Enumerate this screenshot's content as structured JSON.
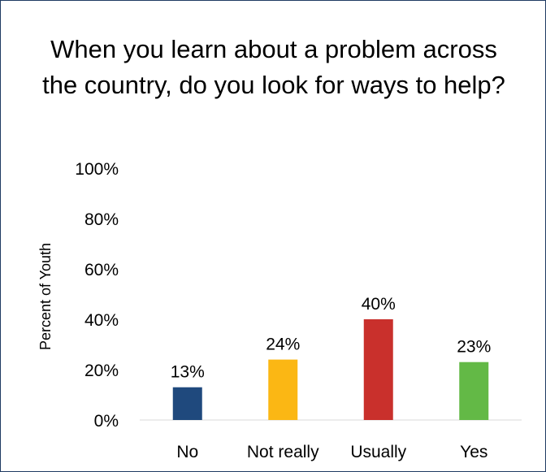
{
  "chart_data": {
    "type": "bar",
    "title": "When you learn about a problem across the country, do you look for ways to help?",
    "ylabel": "Percent of Youth",
    "xlabel": "",
    "categories": [
      "No",
      "Not really",
      "Usually",
      "Yes"
    ],
    "values": [
      13,
      24,
      40,
      23
    ],
    "data_labels": [
      "13%",
      "24%",
      "40%",
      "23%"
    ],
    "ylim": [
      0,
      100
    ],
    "yticks": [
      "0%",
      "20%",
      "40%",
      "60%",
      "80%",
      "100%"
    ],
    "colors": [
      "#1f497d",
      "#fbb714",
      "#c9302c",
      "#63b946"
    ],
    "grid": false,
    "legend": "none"
  }
}
